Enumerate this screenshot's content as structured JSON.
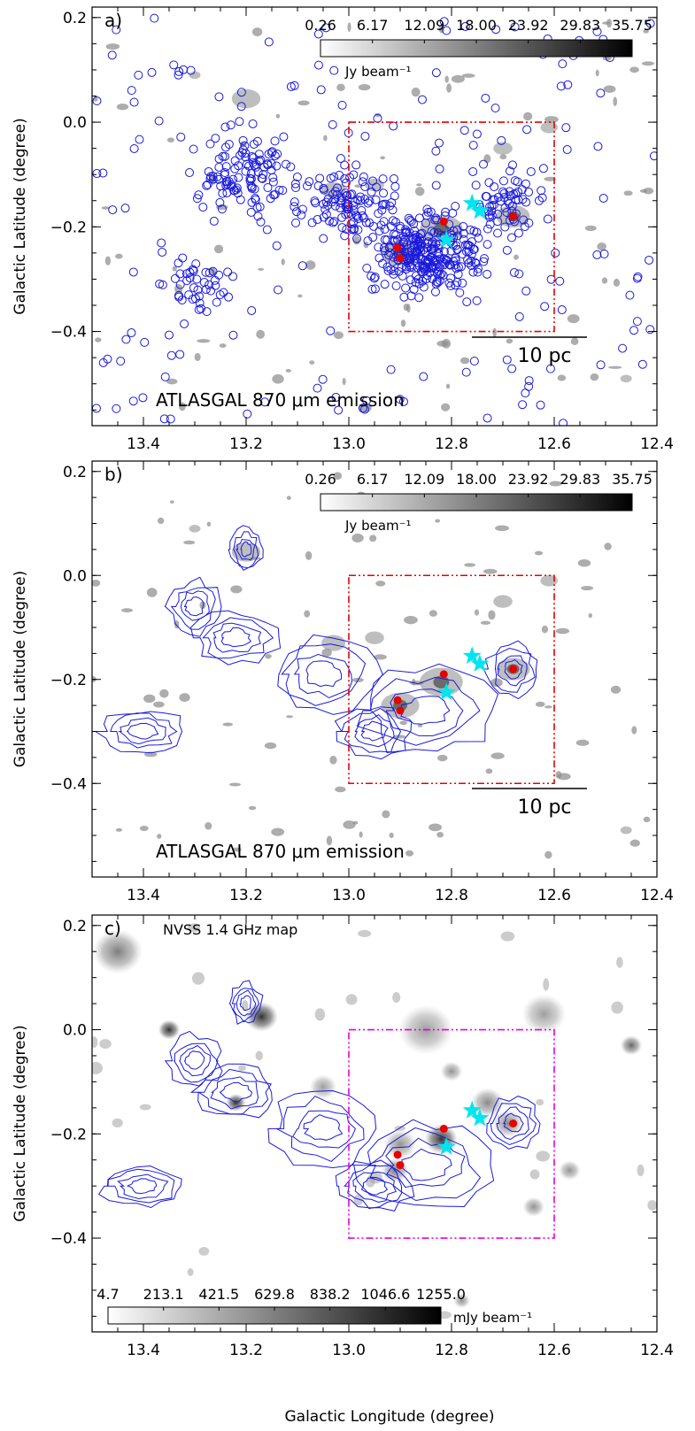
{
  "x_axis_title": "Galactic Longitude (degree)",
  "colors": {
    "circles": "#1a1adc",
    "contours": "#1a1adc",
    "box_red": "#e60000",
    "box_magenta": "#e600e6",
    "red_dots": "#e60000",
    "cyan_stars": "#00e5ee"
  },
  "chart_data": [
    {
      "type": "image-map",
      "panel_label": "a)",
      "title": "ATLASGAL 870 μm emission",
      "ylabel": "Galactic Latitude (degree)",
      "xlabel": "",
      "xlim": [
        13.5,
        12.4
      ],
      "ylim": [
        -0.58,
        0.22
      ],
      "xticks": [
        "13.4",
        "13.2",
        "13.0",
        "12.8",
        "12.6",
        "12.4"
      ],
      "yticks": [
        "0.2",
        "0.0",
        "−0.2",
        "−0.4"
      ],
      "colorbar": {
        "ticks": [
          "0.26",
          "6.17",
          "12.09",
          "18.00",
          "23.92",
          "29.83",
          "35.75"
        ],
        "unit": "Jy beam⁻¹"
      },
      "scale_bar": "10 pc",
      "box": {
        "l": [
          13.0,
          12.6
        ],
        "b": [
          -0.4,
          0.0
        ]
      },
      "red_dots": [
        [
          12.815,
          -0.19
        ],
        [
          12.905,
          -0.24
        ],
        [
          12.9,
          -0.26
        ],
        [
          12.68,
          -0.18
        ]
      ],
      "cyan_stars": [
        [
          12.76,
          -0.155
        ],
        [
          12.745,
          -0.17
        ],
        [
          12.81,
          -0.225
        ]
      ]
    },
    {
      "type": "image-map",
      "panel_label": "b)",
      "title": "ATLASGAL 870 μm emission",
      "ylabel": "Galactic Latitude (degree)",
      "xlabel": "",
      "xlim": [
        13.5,
        12.4
      ],
      "ylim": [
        -0.58,
        0.22
      ],
      "xticks": [
        "13.4",
        "13.2",
        "13.0",
        "12.8",
        "12.6",
        "12.4"
      ],
      "yticks": [
        "0.2",
        "0.0",
        "−0.2",
        "−0.4"
      ],
      "colorbar": {
        "ticks": [
          "0.26",
          "6.17",
          "12.09",
          "18.00",
          "23.92",
          "29.83",
          "35.75"
        ],
        "unit": "Jy beam⁻¹"
      },
      "scale_bar": "10 pc",
      "box": {
        "l": [
          13.0,
          12.6
        ],
        "b": [
          -0.4,
          0.0
        ]
      },
      "red_dots": [
        [
          12.815,
          -0.19
        ],
        [
          12.905,
          -0.24
        ],
        [
          12.9,
          -0.26
        ],
        [
          12.68,
          -0.18
        ]
      ],
      "cyan_stars": [
        [
          12.76,
          -0.155
        ],
        [
          12.745,
          -0.17
        ],
        [
          12.81,
          -0.225
        ]
      ]
    },
    {
      "type": "image-map",
      "panel_label": "c)",
      "title": "NVSS 1.4 GHz map",
      "ylabel": "Galactic Latitude (degree)",
      "xlabel": "Galactic Longitude (degree)",
      "xlim": [
        13.5,
        12.4
      ],
      "ylim": [
        -0.58,
        0.22
      ],
      "xticks": [
        "13.4",
        "13.2",
        "13.0",
        "12.8",
        "12.6",
        "12.4"
      ],
      "yticks": [
        "0.2",
        "0.0",
        "−0.2",
        "−0.4"
      ],
      "colorbar": {
        "ticks": [
          "4.7",
          "213.1",
          "421.5",
          "629.8",
          "838.2",
          "1046.6",
          "1255.0"
        ],
        "unit": "mJy beam⁻¹"
      },
      "scale_bar": "",
      "box": {
        "l": [
          13.0,
          12.6
        ],
        "b": [
          -0.4,
          0.0
        ]
      },
      "red_dots": [
        [
          12.815,
          -0.19
        ],
        [
          12.905,
          -0.24
        ],
        [
          12.9,
          -0.26
        ],
        [
          12.68,
          -0.18
        ]
      ],
      "cyan_stars": [
        [
          12.76,
          -0.155
        ],
        [
          12.745,
          -0.17
        ],
        [
          12.81,
          -0.225
        ]
      ]
    }
  ]
}
